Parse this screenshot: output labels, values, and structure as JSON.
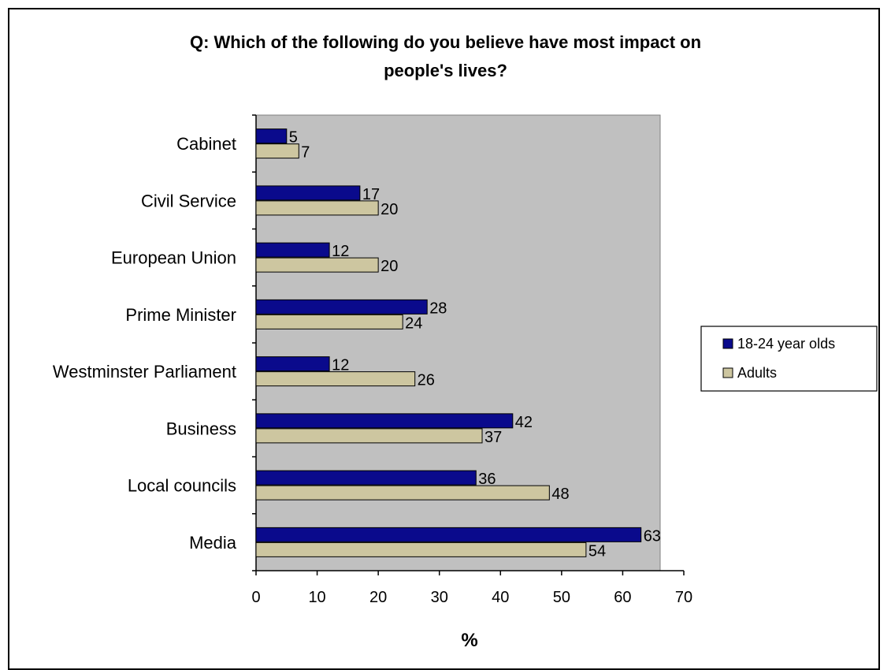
{
  "chart_data": {
    "type": "bar",
    "orientation": "horizontal",
    "title": "Q: Which of the following do you believe have most impact on people's lives?",
    "title_lines": [
      "Q: Which of the following do you believe have most impact on",
      "people's lives?"
    ],
    "categories": [
      "Cabinet",
      "Civil Service",
      "European Union",
      "Prime Minister",
      "Westminster Parliament",
      "Business",
      "Local councils",
      "Media"
    ],
    "series": [
      {
        "name": "18-24 year olds",
        "color": "#0a0a8c",
        "values": [
          5,
          17,
          12,
          28,
          12,
          42,
          36,
          63
        ]
      },
      {
        "name": "Adults",
        "color": "#cdc6a0",
        "values": [
          7,
          20,
          20,
          24,
          26,
          37,
          48,
          54
        ]
      }
    ],
    "xlabel": "%",
    "ylabel": "",
    "xlim": [
      0,
      70
    ],
    "xticks": [
      0,
      10,
      20,
      30,
      40,
      50,
      60,
      70
    ],
    "plot_background": "#c0c0c0",
    "grid": false,
    "legend_position": "right"
  }
}
